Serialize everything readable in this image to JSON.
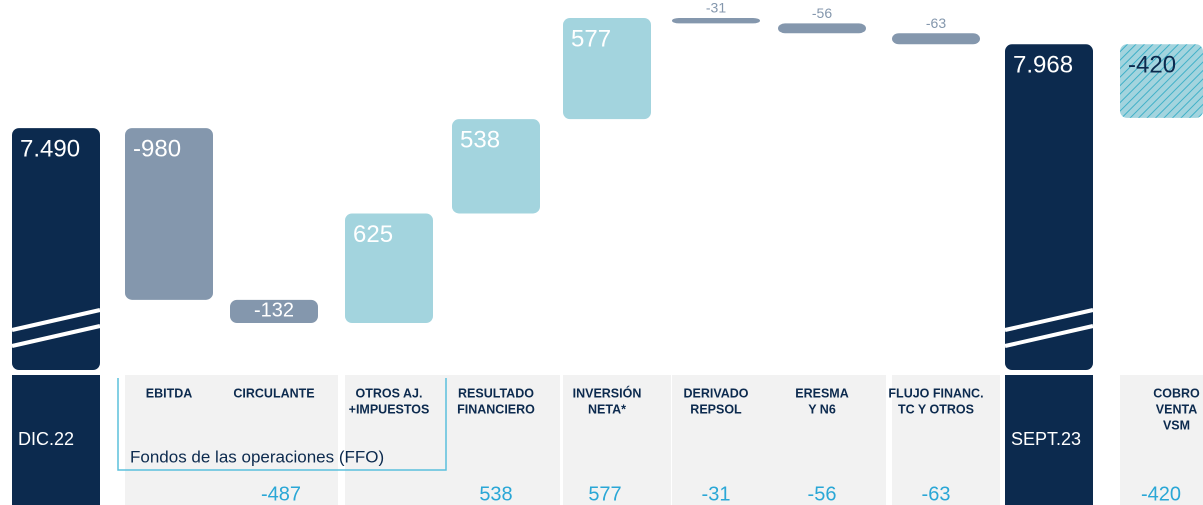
{
  "chart_data": {
    "type": "waterfall",
    "categories": [
      [
        "DIC.22"
      ],
      [
        "EBITDA"
      ],
      [
        "CIRCULANTE"
      ],
      [
        "OTROS AJ.",
        "+IMPUESTOS"
      ],
      [
        "RESULTADO",
        "FINANCIERO"
      ],
      [
        "INVERSIÓN",
        "NETA*"
      ],
      [
        "DERIVADO",
        "REPSOL"
      ],
      [
        "ERESMA",
        "Y N6"
      ],
      [
        "FLUJO FINANC.",
        "TC Y OTROS"
      ],
      [
        "SEPT.23"
      ],
      [
        "COBRO",
        "VENTA",
        "VSM"
      ]
    ],
    "values": [
      7490,
      -980,
      -132,
      625,
      538,
      577,
      -31,
      -56,
      -63,
      7968,
      -420
    ],
    "value_labels": [
      "7.490",
      "-980",
      "-132",
      "625",
      "538",
      "577",
      "-31",
      "-56",
      "-63",
      "7.968",
      "-420"
    ],
    "measure": [
      "total",
      "relative",
      "relative",
      "relative",
      "relative",
      "relative",
      "relative",
      "relative",
      "relative",
      "total",
      "relative"
    ],
    "colors": [
      "#0c2a4e",
      "#8497ad",
      "#8497ad",
      "#a3d4de",
      "#a3d4de",
      "#a3d4de",
      "#8497ad",
      "#8497ad",
      "#8497ad",
      "#0c2a4e",
      "#a3d4de"
    ],
    "hatch": [
      false,
      false,
      false,
      false,
      false,
      false,
      false,
      false,
      false,
      false,
      true
    ],
    "group_label": "Fondos de las operaciones (FFO)",
    "bottom_values": [
      -487,
      538,
      577,
      -31,
      -56,
      -63,
      -420
    ]
  }
}
